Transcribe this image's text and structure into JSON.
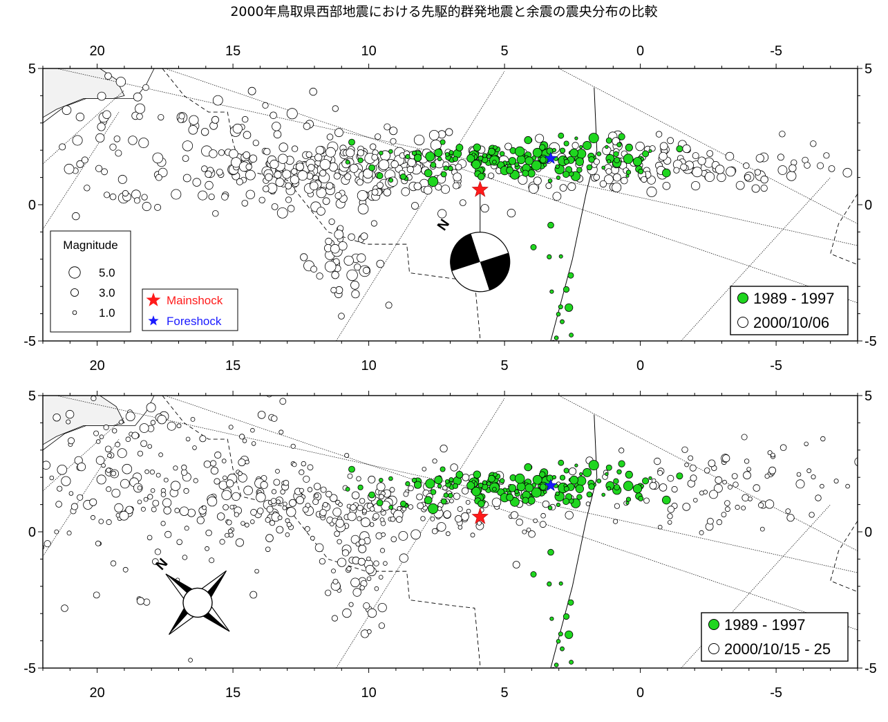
{
  "title": "2000年鳥取県西部地震における先駆的群発地震と余震の震央分布の比較",
  "chart_data": [
    {
      "type": "scatter",
      "panel": "top",
      "xlim": [
        22,
        -8
      ],
      "ylim": [
        -5,
        5
      ],
      "x_ticks": [
        20,
        15,
        10,
        5,
        0,
        -5
      ],
      "x_tick_labels": [
        "20",
        "15",
        "10",
        "5",
        "0",
        "-5"
      ],
      "y_ticks": [
        -5,
        0,
        5
      ],
      "y_tick_labels": [
        "-5",
        "0",
        "5"
      ],
      "magnitude_legend": {
        "title": "Magnitude",
        "entries": [
          {
            "label": "5.0",
            "mag": 5.0
          },
          {
            "label": "3.0",
            "mag": 3.0
          },
          {
            "label": "1.0",
            "mag": 1.0
          }
        ]
      },
      "star_legend": [
        {
          "label": "Mainshock",
          "color": "#ff1a1a"
        },
        {
          "label": "Foreshock",
          "color": "#1a1aff"
        }
      ],
      "series_legend": [
        {
          "label": "1989 - 1997",
          "color": "#1fd61f"
        },
        {
          "label": "2000/10/06",
          "color": "#ffffff"
        }
      ],
      "mainshock": {
        "x": 5.9,
        "y": 0.55
      },
      "foreshock": {
        "x": 3.3,
        "y": 1.7
      },
      "mechanism": {
        "label": "N",
        "x": 5.9,
        "y": -2.1
      },
      "series": [
        {
          "name": "1989 - 1997",
          "color": "#1fd61f",
          "seed": 11,
          "clusters": [
            {
              "cx": 6.0,
              "cy": 1.6,
              "sx": 2.0,
              "sy": 0.35,
              "n": 95,
              "mmin": 1.0,
              "mmax": 4.3
            },
            {
              "cx": 2.5,
              "cy": 1.8,
              "sx": 1.6,
              "sy": 0.35,
              "n": 70,
              "mmin": 0.5,
              "mmax": 4.3
            },
            {
              "cx": 3.0,
              "cy": -3.5,
              "sx": 0.4,
              "sy": 1.1,
              "n": 16,
              "mmin": 0.8,
              "mmax": 3.2
            }
          ]
        },
        {
          "name": "2000/10/06",
          "color": "#ffffff",
          "seed": 23,
          "clusters": [
            {
              "cx": 10.5,
              "cy": 1.2,
              "sx": 3.0,
              "sy": 0.6,
              "n": 280,
              "mmin": 2.0,
              "mmax": 4.6
            },
            {
              "cx": 17.2,
              "cy": 2.0,
              "sx": 2.6,
              "sy": 1.6,
              "n": 90,
              "mmin": 2.0,
              "mmax": 4.6
            },
            {
              "cx": 11.0,
              "cy": -1.8,
              "sx": 0.6,
              "sy": 1.1,
              "n": 45,
              "mmin": 2.0,
              "mmax": 4.8
            },
            {
              "cx": -2.8,
              "cy": 1.4,
              "sx": 2.3,
              "sy": 0.45,
              "n": 80,
              "mmin": 2.0,
              "mmax": 4.5
            },
            {
              "cx": 1.5,
              "cy": 1.6,
              "sx": 1.3,
              "sy": 0.4,
              "n": 35,
              "mmin": 2.0,
              "mmax": 4.4
            }
          ]
        }
      ]
    },
    {
      "type": "scatter",
      "panel": "bottom",
      "xlim": [
        22,
        -8
      ],
      "ylim": [
        -5,
        5
      ],
      "x_ticks": [
        20,
        15,
        10,
        5,
        0,
        -5
      ],
      "x_tick_labels": [
        "20",
        "15",
        "10",
        "5",
        "0",
        "-5"
      ],
      "y_ticks": [
        -5,
        0,
        5
      ],
      "y_tick_labels": [
        "-5",
        "0",
        "5"
      ],
      "series_legend": [
        {
          "label": "1989 - 1997",
          "color": "#1fd61f"
        },
        {
          "label": "2000/10/15 - 25",
          "color": "#ffffff"
        }
      ],
      "mainshock": {
        "x": 5.9,
        "y": 0.55
      },
      "foreshock": {
        "x": 3.3,
        "y": 1.7
      },
      "compass": {
        "label": "N",
        "x": 16.3,
        "y": -2.6
      },
      "series": [
        {
          "name": "1989 - 1997",
          "color": "#1fd61f",
          "seed": 11,
          "clusters": [
            {
              "cx": 6.0,
              "cy": 1.6,
              "sx": 2.0,
              "sy": 0.35,
              "n": 95,
              "mmin": 1.0,
              "mmax": 4.3
            },
            {
              "cx": 2.5,
              "cy": 1.8,
              "sx": 1.6,
              "sy": 0.35,
              "n": 70,
              "mmin": 0.5,
              "mmax": 4.3
            },
            {
              "cx": 3.0,
              "cy": -3.5,
              "sx": 0.4,
              "sy": 1.1,
              "n": 16,
              "mmin": 0.8,
              "mmax": 3.2
            }
          ]
        },
        {
          "name": "2000/10/15 - 25",
          "color": "#ffffff",
          "seed": 47,
          "clusters": [
            {
              "cx": 10.0,
              "cy": 1.0,
              "sx": 3.4,
              "sy": 0.7,
              "n": 260,
              "mmin": 1.0,
              "mmax": 4.0
            },
            {
              "cx": 18.0,
              "cy": 2.3,
              "sx": 2.8,
              "sy": 1.7,
              "n": 170,
              "mmin": 1.0,
              "mmax": 4.0
            },
            {
              "cx": 10.5,
              "cy": -1.5,
              "sx": 0.7,
              "sy": 1.1,
              "n": 45,
              "mmin": 1.0,
              "mmax": 4.0
            },
            {
              "cx": -3.0,
              "cy": 1.6,
              "sx": 2.5,
              "sy": 0.8,
              "n": 90,
              "mmin": 1.0,
              "mmax": 3.8
            },
            {
              "cx": 18.5,
              "cy": -1.8,
              "sx": 1.5,
              "sy": 1.0,
              "n": 14,
              "mmin": 1.0,
              "mmax": 3.0
            }
          ]
        }
      ]
    }
  ]
}
